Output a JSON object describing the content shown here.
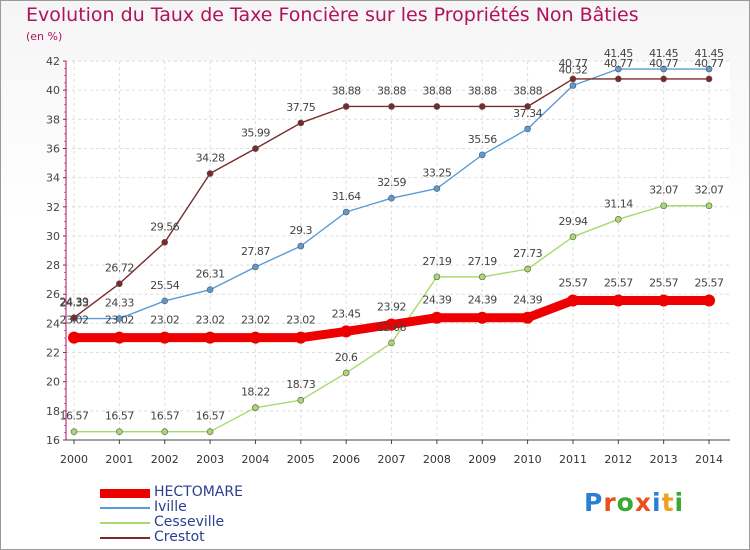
{
  "title": "Evolution du Taux de Taxe Foncière sur les Propriétés Non Bâties",
  "unit": "(en %)",
  "logo": {
    "letters": [
      "P",
      "r",
      "o",
      "x",
      "i",
      "t",
      "i"
    ],
    "colors": [
      "#2a7fd4",
      "#e8501f",
      "#3aa832",
      "#e8501f",
      "#2a7fd4",
      "#f0a020",
      "#3aa832"
    ]
  },
  "chart_data": {
    "type": "line",
    "x": [
      "2000",
      "2001",
      "2002",
      "2003",
      "2004",
      "2005",
      "2006",
      "2007",
      "2008",
      "2009",
      "2010",
      "2011",
      "2012",
      "2013",
      "2014"
    ],
    "ylim": [
      16,
      42
    ],
    "yticks": [
      16,
      18,
      20,
      22,
      24,
      26,
      28,
      30,
      32,
      34,
      36,
      38,
      40,
      42
    ],
    "grid": true,
    "legend_position": "bottom-left",
    "series": [
      {
        "name": "HECTOMARE",
        "color": "#ee0000",
        "values": [
          23.02,
          23.02,
          23.02,
          23.02,
          23.02,
          23.02,
          23.45,
          23.92,
          24.39,
          24.39,
          24.39,
          25.57,
          25.57,
          25.57,
          25.57
        ],
        "labels": [
          "23.02",
          "23.02",
          "23.02",
          "23.02",
          "23.02",
          "23.02",
          "23.45",
          "23.92",
          "24.39",
          "24.39",
          "24.39",
          "25.57",
          "25.57",
          "25.57",
          "25.57"
        ]
      },
      {
        "name": "Iville",
        "color": "#5b9bd5",
        "values": [
          24.33,
          24.33,
          25.54,
          26.31,
          27.87,
          29.3,
          31.64,
          32.59,
          33.25,
          35.56,
          37.34,
          40.32,
          41.45,
          41.45,
          41.45
        ],
        "labels": [
          "24.33",
          "24.33",
          "25.54",
          "26.31",
          "27.87",
          "29.3",
          "31.64",
          "32.59",
          "33.25",
          "35.56",
          "37.34",
          "40.32",
          "41.45",
          "41.45",
          "41.45"
        ]
      },
      {
        "name": "Cesseville",
        "color": "#a8d96e",
        "values": [
          16.57,
          16.57,
          16.57,
          16.57,
          18.22,
          18.73,
          20.6,
          22.66,
          27.19,
          27.19,
          27.73,
          29.94,
          31.14,
          32.07,
          32.07
        ],
        "labels": [
          "16.57",
          "16.57",
          "16.57",
          "16.57",
          "18.22",
          "18.73",
          "20.6",
          "22.66",
          "27.19",
          "27.19",
          "27.73",
          "29.94",
          "31.14",
          "32.07",
          "32.07"
        ]
      },
      {
        "name": "Crestot",
        "color": "#7a2a2a",
        "values": [
          24.39,
          26.72,
          29.56,
          34.28,
          35.99,
          37.75,
          38.88,
          38.88,
          38.88,
          38.88,
          38.88,
          40.77,
          40.77,
          40.77,
          40.77
        ],
        "labels": [
          "24.39",
          "26.72",
          "29.56",
          "34.28",
          "35.99",
          "37.75",
          "38.88",
          "38.88",
          "38.88",
          "38.88",
          "38.88",
          "40.77",
          "40.77",
          "40.77",
          "40.77"
        ]
      }
    ]
  }
}
